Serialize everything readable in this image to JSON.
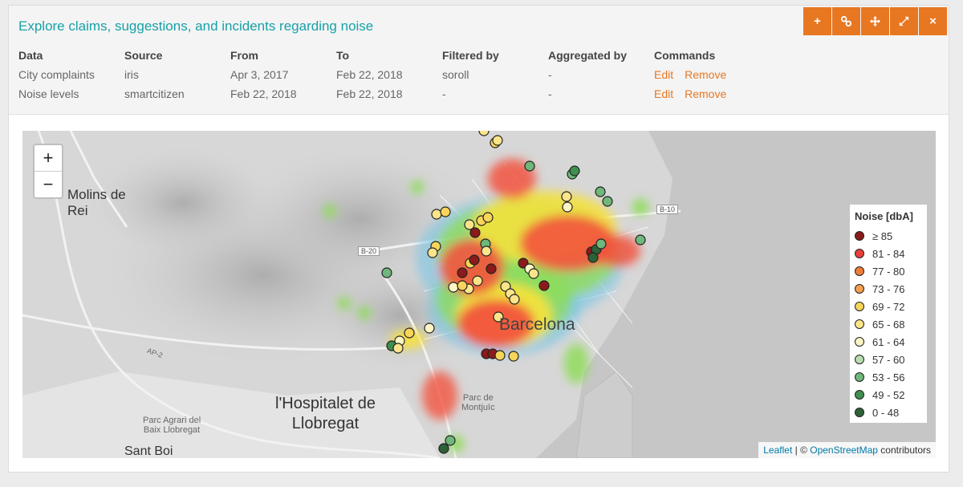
{
  "panel": {
    "title": "Explore claims, suggestions, and incidents regarding noise",
    "toolbar": [
      {
        "name": "add-button",
        "icon": "plus-icon",
        "glyph": "+"
      },
      {
        "name": "link-button",
        "icon": "link-icon",
        "glyph": ""
      },
      {
        "name": "move-button",
        "icon": "move-icon",
        "glyph": ""
      },
      {
        "name": "expand-button",
        "icon": "expand-icon",
        "glyph": ""
      },
      {
        "name": "close-button",
        "icon": "close-icon",
        "glyph": "×"
      }
    ]
  },
  "layers": {
    "headers": [
      "Data",
      "Source",
      "From",
      "To",
      "Filtered by",
      "Aggregated by",
      "Commands"
    ],
    "rows": [
      {
        "data": "City complaints",
        "source": "iris",
        "from": "Apr 3, 2017",
        "to": "Feb 22, 2018",
        "filtered_by": "soroll",
        "aggregated_by": "-",
        "edit": "Edit",
        "remove": "Remove"
      },
      {
        "data": "Noise levels",
        "source": "smartcitizen",
        "from": "Feb 22, 2018",
        "to": "Feb 22, 2018",
        "filtered_by": "-",
        "aggregated_by": "-",
        "edit": "Edit",
        "remove": "Remove"
      }
    ]
  },
  "map": {
    "zoom_in": "+",
    "zoom_out": "−",
    "places": {
      "molins": "Molins de\nRei",
      "hospitalet": "l'Hospitalet de\nLlobregat",
      "barcelona": "Barcelona",
      "parc_agrari": "Parc Agrari del\nBaix Llobregat",
      "sant_boi": "Sant Boi",
      "montjuic": "Parc de\nMontjuïc"
    },
    "roads": {
      "b20": "B-20",
      "b10": "B-10",
      "ap2": "AP-2"
    },
    "attribution": {
      "leaflet": "Leaflet",
      "sep": " | © ",
      "osm": "OpenStreetMap",
      "suffix": " contributors"
    }
  },
  "legend": {
    "title": "Noise [dbA]",
    "items": [
      {
        "label": "≥ 85",
        "color": "#8b1a1a"
      },
      {
        "label": "81 - 84",
        "color": "#e8403a"
      },
      {
        "label": "77 - 80",
        "color": "#f07c3a"
      },
      {
        "label": "73 - 76",
        "color": "#f5a04f"
      },
      {
        "label": "69 - 72",
        "color": "#f6d55a"
      },
      {
        "label": "65 - 68",
        "color": "#fbe48a"
      },
      {
        "label": "61 - 64",
        "color": "#fdf5c4"
      },
      {
        "label": "57 - 60",
        "color": "#b8dcb0"
      },
      {
        "label": "53 - 56",
        "color": "#6fb77a"
      },
      {
        "label": "49 - 52",
        "color": "#3f8f4e"
      },
      {
        "label": "0 - 48",
        "color": "#2d6137"
      }
    ]
  },
  "colors": {
    "accent": "#e87722",
    "title": "#17a2a8",
    "sea": "#c9c9c9"
  }
}
